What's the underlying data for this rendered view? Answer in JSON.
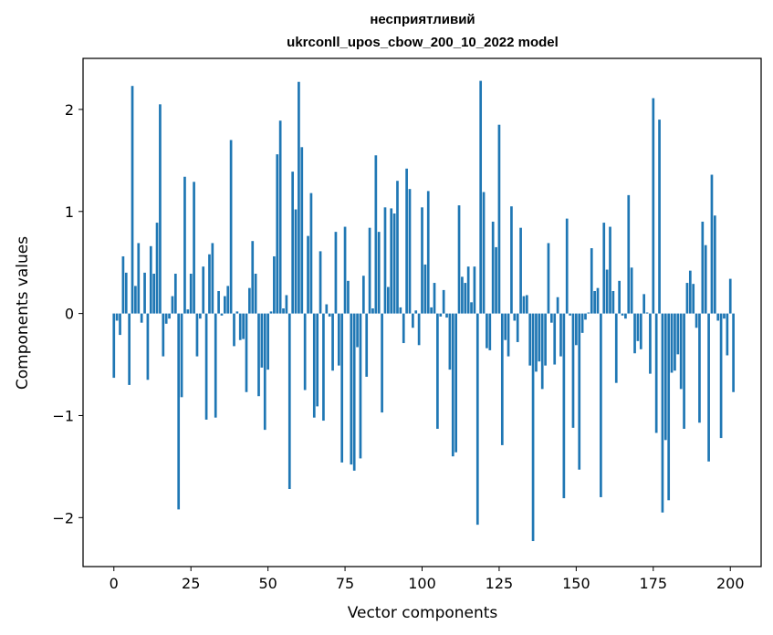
{
  "chart_data": {
    "type": "bar",
    "title": "несприятливий",
    "subtitle": "ukrconll_upos_cbow_200_10_2022 model",
    "xlabel": "Vector components",
    "ylabel": "Components values",
    "xlim": [
      -10,
      210
    ],
    "ylim": [
      -2.48,
      2.5
    ],
    "xticks": [
      0,
      25,
      50,
      75,
      100,
      125,
      150,
      175,
      200
    ],
    "yticks": [
      -2,
      -1,
      0,
      1,
      2
    ],
    "xtick_labels": [
      "0",
      "25",
      "50",
      "75",
      "100",
      "125",
      "150",
      "175",
      "200"
    ],
    "ytick_labels": [
      "−2",
      "−1",
      "0",
      "1",
      "2"
    ],
    "grid": false,
    "bar_color": "#1f77b4",
    "values": [
      -0.63,
      -0.07,
      -0.21,
      0.56,
      0.4,
      -0.7,
      2.23,
      0.27,
      0.69,
      -0.09,
      0.4,
      -0.65,
      0.66,
      0.39,
      0.89,
      2.05,
      -0.42,
      -0.1,
      -0.05,
      0.17,
      0.39,
      -1.92,
      -0.82,
      1.34,
      0.04,
      0.39,
      1.29,
      -0.42,
      -0.05,
      0.46,
      -1.04,
      0.58,
      0.69,
      -1.02,
      0.22,
      -0.02,
      0.17,
      0.27,
      1.7,
      -0.32,
      0.02,
      -0.26,
      -0.25,
      -0.77,
      0.25,
      0.71,
      0.39,
      -0.81,
      -0.53,
      -1.14,
      -0.55,
      0.02,
      0.56,
      1.56,
      1.89,
      0.05,
      0.18,
      -1.72,
      1.39,
      1.02,
      2.27,
      1.63,
      -0.75,
      0.76,
      1.18,
      -1.02,
      -0.91,
      0.61,
      -1.05,
      0.09,
      -0.03,
      -0.56,
      0.8,
      -0.51,
      -1.46,
      0.85,
      0.32,
      -1.48,
      -1.54,
      -0.33,
      -1.42,
      0.37,
      -0.62,
      0.84,
      0.05,
      1.55,
      0.8,
      -0.97,
      1.04,
      0.26,
      1.03,
      0.98,
      1.3,
      0.06,
      -0.29,
      1.42,
      1.22,
      -0.14,
      0.03,
      -0.31,
      1.04,
      0.48,
      1.2,
      0.06,
      0.3,
      -1.13,
      -0.03,
      0.23,
      -0.04,
      -0.55,
      -1.4,
      -1.36,
      1.06,
      0.36,
      0.3,
      0.46,
      0.11,
      0.46,
      -2.07,
      2.28,
      1.19,
      -0.34,
      -0.36,
      0.9,
      0.65,
      1.85,
      -1.29,
      -0.26,
      -0.42,
      1.05,
      -0.07,
      -0.28,
      0.84,
      0.17,
      0.18,
      -0.51,
      -2.23,
      -0.57,
      -0.47,
      -0.74,
      -0.51,
      0.69,
      -0.09,
      -0.5,
      0.16,
      -0.42,
      -1.81,
      0.93,
      -0.02,
      -1.12,
      -0.31,
      -1.53,
      -0.19,
      -0.06,
      0.01,
      0.64,
      0.22,
      0.25,
      -1.8,
      0.89,
      0.43,
      0.85,
      0.22,
      -0.68,
      0.32,
      -0.02,
      -0.05,
      1.16,
      0.45,
      -0.39,
      -0.27,
      -0.35,
      0.19,
      0.01,
      -0.59,
      2.11,
      -1.17,
      1.9,
      -1.95,
      -1.24,
      -1.83,
      -0.58,
      -0.56,
      -0.4,
      -0.74,
      -1.13,
      0.3,
      0.42,
      0.29,
      -0.14,
      -1.07,
      0.9,
      0.67,
      -1.45,
      1.36,
      0.96,
      -0.07,
      -1.22,
      -0.05,
      -0.41,
      0.34,
      -0.77
    ]
  }
}
